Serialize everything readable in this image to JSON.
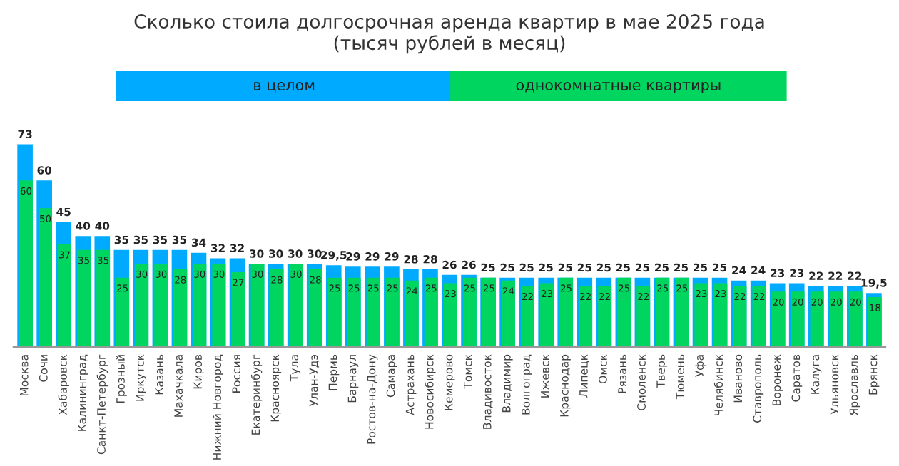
{
  "chart_data": {
    "type": "bar",
    "title": "Сколько стоила долгосрочная аренда квартир в мае 2025 года\n(тысяч рублей в месяц)",
    "legend": "top",
    "categories": [
      "Москва",
      "Сочи",
      "Хабаровск",
      "Калининград",
      "Санкт-Петербург",
      "Грозный",
      "Иркутск",
      "Казань",
      "Махачкала",
      "Киров",
      "Нижний Новгород",
      "Россия",
      "Екатеринбург",
      "Красноярск",
      "Тула",
      "Улан-Удэ",
      "Пермь",
      "Барнаул",
      "Ростов-на-Дону",
      "Самара",
      "Астрахань",
      "Новосибирск",
      "Кемерово",
      "Томск",
      "Владивосток",
      "Владимир",
      "Волгоград",
      "Ижевск",
      "Краснодар",
      "Липецк",
      "Омск",
      "Рязань",
      "Смоленск",
      "Тверь",
      "Тюмень",
      "Уфа",
      "Челябинск",
      "Иваново",
      "Ставрополь",
      "Воронеж",
      "Саратов",
      "Калуга",
      "Ульяновск",
      "Ярославль",
      "Брянск"
    ],
    "series": [
      {
        "name": "в целом",
        "color": "#00aaff",
        "values": [
          73,
          60,
          45,
          40,
          40,
          35,
          35,
          35,
          35,
          34,
          32,
          32,
          30,
          30,
          30,
          30,
          29.5,
          29,
          29,
          29,
          28,
          28,
          26,
          26,
          25,
          25,
          25,
          25,
          25,
          25,
          25,
          25,
          25,
          25,
          25,
          25,
          25,
          24,
          24,
          23,
          23,
          22,
          22,
          22,
          19.5
        ],
        "value_labels": [
          "73",
          "60",
          "45",
          "40",
          "40",
          "35",
          "35",
          "35",
          "35",
          "34",
          "32",
          "32",
          "30",
          "30",
          "30",
          "30",
          "29,5",
          "29",
          "29",
          "29",
          "28",
          "28",
          "26",
          "26",
          "25",
          "25",
          "25",
          "25",
          "25",
          "25",
          "25",
          "25",
          "25",
          "25",
          "25",
          "25",
          "25",
          "24",
          "24",
          "23",
          "23",
          "22",
          "22",
          "22",
          "19,5"
        ]
      },
      {
        "name": "однокомнатные квартиры",
        "color": "#00d65f",
        "values": [
          60,
          50,
          37,
          35,
          35,
          25,
          30,
          30,
          28,
          30,
          30,
          27,
          30,
          28,
          30,
          28,
          25,
          25,
          25,
          25,
          24,
          25,
          23,
          25,
          25,
          24,
          22,
          23,
          25,
          22,
          22,
          25,
          22,
          25,
          25,
          23,
          23,
          22,
          22,
          20,
          20,
          20,
          20,
          20,
          18
        ],
        "value_labels": [
          "60",
          "50",
          "37",
          "35",
          "35",
          "25",
          "30",
          "30",
          "28",
          "30",
          "30",
          "27",
          "30",
          "28",
          "30",
          "28",
          "25",
          "25",
          "25",
          "25",
          "24",
          "25",
          "23",
          "25",
          "25",
          "24",
          "22",
          "23",
          "25",
          "22",
          "22",
          "25",
          "22",
          "25",
          "25",
          "23",
          "23",
          "22",
          "22",
          "20",
          "20",
          "20",
          "20",
          "20",
          "18"
        ]
      }
    ]
  }
}
